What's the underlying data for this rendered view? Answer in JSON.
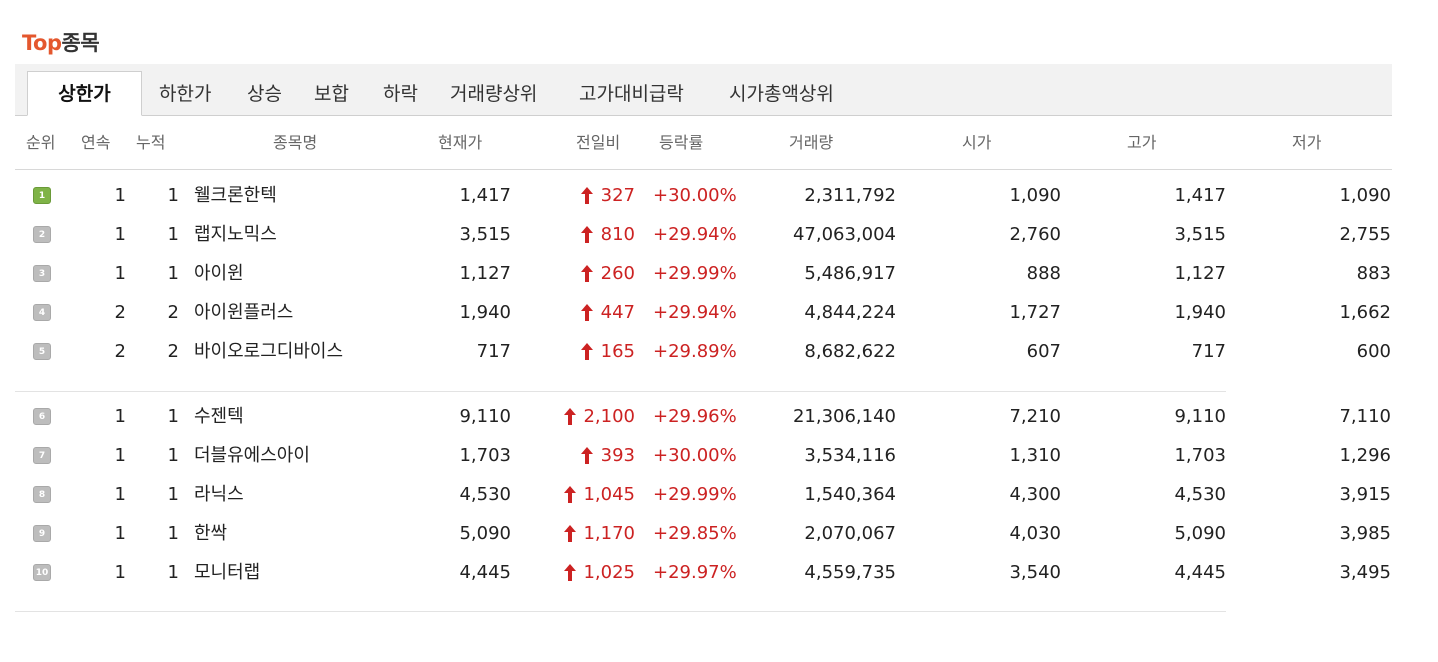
{
  "title": {
    "accent": "Top",
    "rest": "종목"
  },
  "tabs": [
    {
      "label": "상한가",
      "active": true
    },
    {
      "label": "하한가"
    },
    {
      "label": "상승"
    },
    {
      "label": "보합"
    },
    {
      "label": "하락"
    },
    {
      "label": "거래량상위"
    },
    {
      "label": "고가대비급락"
    },
    {
      "label": "시가총액상위"
    }
  ],
  "columns": {
    "rank": "순위",
    "consecutive": "연속",
    "cumulative": "누적",
    "name": "종목명",
    "price": "현재가",
    "change": "전일비",
    "rate": "등락률",
    "volume": "거래량",
    "open": "시가",
    "high": "고가",
    "low": "저가"
  },
  "colors": {
    "accent": "#e4572e",
    "up": "#cc2222",
    "rank_first": "#7fb347",
    "rank_other": "#bdbdbd"
  },
  "rows": [
    {
      "rank": "1",
      "consecutive": "1",
      "cumulative": "1",
      "name": "웰크론한텍",
      "price": "1,417",
      "change": "327",
      "rate": "+30.00%",
      "volume": "2,311,792",
      "open": "1,090",
      "high": "1,417",
      "low": "1,090"
    },
    {
      "rank": "2",
      "consecutive": "1",
      "cumulative": "1",
      "name": "랩지노믹스",
      "price": "3,515",
      "change": "810",
      "rate": "+29.94%",
      "volume": "47,063,004",
      "open": "2,760",
      "high": "3,515",
      "low": "2,755"
    },
    {
      "rank": "3",
      "consecutive": "1",
      "cumulative": "1",
      "name": "아이윈",
      "price": "1,127",
      "change": "260",
      "rate": "+29.99%",
      "volume": "5,486,917",
      "open": "888",
      "high": "1,127",
      "low": "883"
    },
    {
      "rank": "4",
      "consecutive": "2",
      "cumulative": "2",
      "name": "아이윈플러스",
      "price": "1,940",
      "change": "447",
      "rate": "+29.94%",
      "volume": "4,844,224",
      "open": "1,727",
      "high": "1,940",
      "low": "1,662"
    },
    {
      "rank": "5",
      "consecutive": "2",
      "cumulative": "2",
      "name": "바이오로그디바이스",
      "price": "717",
      "change": "165",
      "rate": "+29.89%",
      "volume": "8,682,622",
      "open": "607",
      "high": "717",
      "low": "600"
    },
    {
      "rank": "6",
      "consecutive": "1",
      "cumulative": "1",
      "name": "수젠텍",
      "price": "9,110",
      "change": "2,100",
      "rate": "+29.96%",
      "volume": "21,306,140",
      "open": "7,210",
      "high": "9,110",
      "low": "7,110"
    },
    {
      "rank": "7",
      "consecutive": "1",
      "cumulative": "1",
      "name": "더블유에스아이",
      "price": "1,703",
      "change": "393",
      "rate": "+30.00%",
      "volume": "3,534,116",
      "open": "1,310",
      "high": "1,703",
      "low": "1,296"
    },
    {
      "rank": "8",
      "consecutive": "1",
      "cumulative": "1",
      "name": "라닉스",
      "price": "4,530",
      "change": "1,045",
      "rate": "+29.99%",
      "volume": "1,540,364",
      "open": "4,300",
      "high": "4,530",
      "low": "3,915"
    },
    {
      "rank": "9",
      "consecutive": "1",
      "cumulative": "1",
      "name": "한싹",
      "price": "5,090",
      "change": "1,170",
      "rate": "+29.85%",
      "volume": "2,070,067",
      "open": "4,030",
      "high": "5,090",
      "low": "3,985"
    },
    {
      "rank": "10",
      "consecutive": "1",
      "cumulative": "1",
      "name": "모니터랩",
      "price": "4,445",
      "change": "1,025",
      "rate": "+29.97%",
      "volume": "4,559,735",
      "open": "3,540",
      "high": "4,445",
      "low": "3,495"
    }
  ]
}
